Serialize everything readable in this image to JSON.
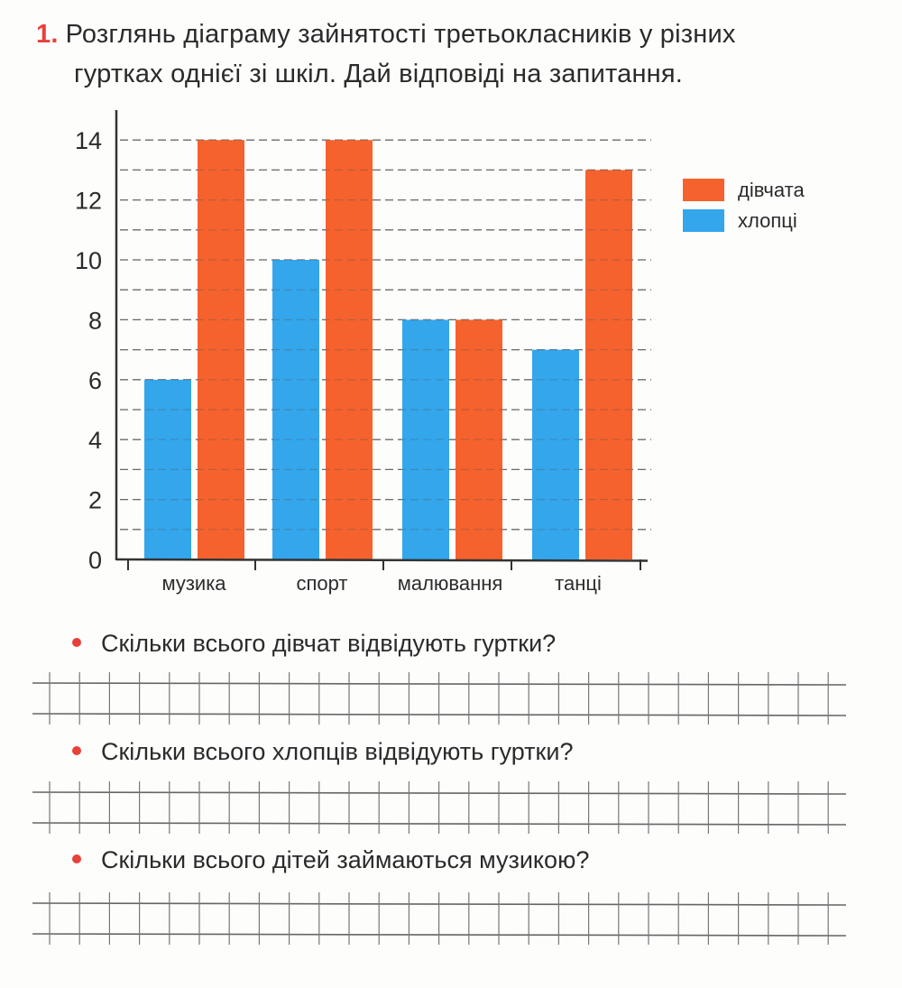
{
  "task": {
    "number": "1.",
    "line1": "Розглянь діаграму зайнятості третьокласників у різних",
    "line2": "гуртках однієї зі шкіл. Дай відповіді на запитання."
  },
  "colors": {
    "girls": "#f5622d",
    "boys": "#33a6ec",
    "axis": "#333333",
    "gridline": "#777777",
    "bullet": "#e8403a"
  },
  "chart_data": {
    "type": "bar",
    "title": "",
    "categories": [
      "музика",
      "спорт",
      "малювання",
      "танці"
    ],
    "series": [
      {
        "name": "хлопці",
        "color": "#33a6ec",
        "values": [
          6,
          10,
          8,
          7
        ]
      },
      {
        "name": "дівчата",
        "color": "#f5622d",
        "values": [
          14,
          14,
          8,
          13
        ]
      }
    ],
    "xlabel": "",
    "ylabel": "",
    "ylim": [
      0,
      15
    ],
    "yticks": [
      0,
      2,
      4,
      6,
      8,
      10,
      12,
      14
    ],
    "grid": "dashed horizontal lines at every 1 unit",
    "legend": {
      "position": "right",
      "entries": [
        "дівчата",
        "хлопці"
      ]
    }
  },
  "questions": [
    {
      "text": "Скільки всього дівчат відвідують гуртки?"
    },
    {
      "text": "Скільки всього хлопців відвідують гуртки?"
    },
    {
      "text": "Скільки всього дітей займаються музикою?"
    }
  ]
}
